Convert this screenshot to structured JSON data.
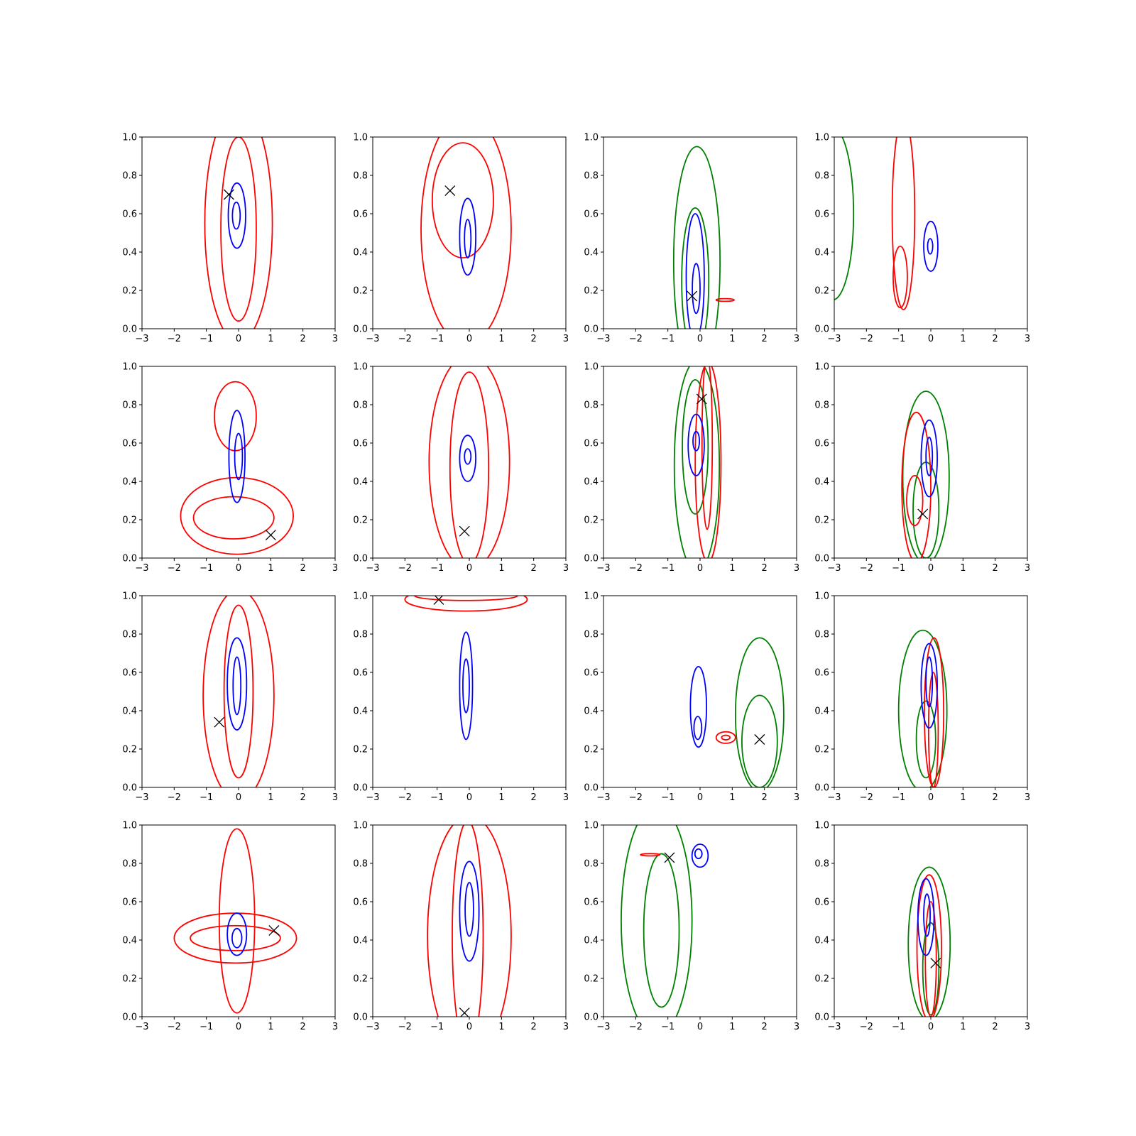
{
  "colors": {
    "blue": "#0000ff",
    "red": "#ff0000",
    "green": "#008000",
    "marker": "#000000"
  },
  "chart_data": [
    {
      "type": "contour",
      "row": 0,
      "col": 0,
      "xlim": [
        -3,
        3
      ],
      "ylim": [
        0,
        1
      ],
      "xticks": [
        "−3",
        "−2",
        "−1",
        "0",
        "1",
        "2",
        "3"
      ],
      "yticks": [
        "0.0",
        "0.2",
        "0.4",
        "0.6",
        "0.8",
        "1.0"
      ],
      "contours": [
        {
          "color": "red",
          "cx": 0,
          "cy": 0.55,
          "rx": 1.05,
          "ry": 0.62
        },
        {
          "color": "red",
          "cx": 0,
          "cy": 0.52,
          "rx": 0.55,
          "ry": 0.48
        },
        {
          "color": "blue",
          "cx": -0.05,
          "cy": 0.59,
          "rx": 0.27,
          "ry": 0.17
        },
        {
          "color": "blue",
          "cx": -0.07,
          "cy": 0.59,
          "rx": 0.12,
          "ry": 0.07
        }
      ],
      "marker": {
        "x": -0.3,
        "y": 0.7
      }
    },
    {
      "type": "contour",
      "row": 0,
      "col": 1,
      "xlim": [
        -3,
        3
      ],
      "ylim": [
        0,
        1
      ],
      "xticks": [
        "−3",
        "−2",
        "−1",
        "0",
        "1",
        "2",
        "3"
      ],
      "yticks": [
        "0.0",
        "0.2",
        "0.4",
        "0.6",
        "0.8",
        "1.0"
      ],
      "contours": [
        {
          "color": "red",
          "cx": -0.1,
          "cy": 0.52,
          "rx": 1.4,
          "ry": 0.6
        },
        {
          "color": "red",
          "cx": -0.2,
          "cy": 0.67,
          "rx": 0.95,
          "ry": 0.3
        },
        {
          "color": "blue",
          "cx": -0.05,
          "cy": 0.48,
          "rx": 0.25,
          "ry": 0.2
        },
        {
          "color": "blue",
          "cx": -0.05,
          "cy": 0.47,
          "rx": 0.1,
          "ry": 0.1
        }
      ],
      "marker": {
        "x": -0.6,
        "y": 0.72
      }
    },
    {
      "type": "contour",
      "row": 0,
      "col": 2,
      "xlim": [
        -3,
        3
      ],
      "ylim": [
        0,
        1
      ],
      "xticks": [
        "−3",
        "−2",
        "−1",
        "0",
        "1",
        "2",
        "3"
      ],
      "yticks": [
        "0.0",
        "0.2",
        "0.4",
        "0.6",
        "0.8",
        "1.0"
      ],
      "contours": [
        {
          "color": "green",
          "cx": -0.1,
          "cy": 0.35,
          "rx": 0.72,
          "ry": 0.6
        },
        {
          "color": "green",
          "cx": -0.15,
          "cy": 0.25,
          "rx": 0.42,
          "ry": 0.38
        },
        {
          "color": "blue",
          "cx": -0.15,
          "cy": 0.27,
          "rx": 0.28,
          "ry": 0.33
        },
        {
          "color": "blue",
          "cx": -0.12,
          "cy": 0.21,
          "rx": 0.12,
          "ry": 0.13
        },
        {
          "color": "red",
          "cx": 0.78,
          "cy": 0.15,
          "rx": 0.28,
          "ry": 0.007
        }
      ],
      "marker": {
        "x": -0.25,
        "y": 0.17
      }
    },
    {
      "type": "contour",
      "row": 0,
      "col": 3,
      "xlim": [
        -3,
        3
      ],
      "ylim": [
        0,
        1
      ],
      "xticks": [
        "−3",
        "−2",
        "−1",
        "0",
        "1",
        "2",
        "3"
      ],
      "yticks": [
        "0.0",
        "0.2",
        "0.4",
        "0.6",
        "0.8",
        "1.0"
      ],
      "contours": [
        {
          "color": "green",
          "cx": -3.05,
          "cy": 0.6,
          "rx": 0.65,
          "ry": 0.45
        },
        {
          "color": "red",
          "cx": -0.85,
          "cy": 0.6,
          "rx": 0.35,
          "ry": 0.5
        },
        {
          "color": "red",
          "cx": -0.95,
          "cy": 0.27,
          "rx": 0.22,
          "ry": 0.16
        },
        {
          "color": "blue",
          "cx": 0,
          "cy": 0.43,
          "rx": 0.22,
          "ry": 0.13
        },
        {
          "color": "blue",
          "cx": -0.02,
          "cy": 0.43,
          "rx": 0.08,
          "ry": 0.04
        }
      ],
      "marker": null
    },
    {
      "type": "contour",
      "row": 1,
      "col": 0,
      "xlim": [
        -3,
        3
      ],
      "ylim": [
        0,
        1
      ],
      "xticks": [
        "−3",
        "−2",
        "−1",
        "0",
        "1",
        "2",
        "3"
      ],
      "yticks": [
        "0.0",
        "0.2",
        "0.4",
        "0.6",
        "0.8",
        "1.0"
      ],
      "contours": [
        {
          "color": "red",
          "cx": -0.05,
          "cy": 0.22,
          "rx": 1.75,
          "ry": 0.2
        },
        {
          "color": "red",
          "cx": -0.15,
          "cy": 0.21,
          "rx": 1.25,
          "ry": 0.11
        },
        {
          "color": "red",
          "cx": -0.1,
          "cy": 0.74,
          "rx": 0.65,
          "ry": 0.18
        },
        {
          "color": "blue",
          "cx": -0.05,
          "cy": 0.53,
          "rx": 0.25,
          "ry": 0.24
        },
        {
          "color": "blue",
          "cx": 0,
          "cy": 0.53,
          "rx": 0.12,
          "ry": 0.12
        }
      ],
      "marker": {
        "x": 1.0,
        "y": 0.12
      }
    },
    {
      "type": "contour",
      "row": 1,
      "col": 1,
      "xlim": [
        -3,
        3
      ],
      "ylim": [
        0,
        1
      ],
      "xticks": [
        "−3",
        "−2",
        "−1",
        "0",
        "1",
        "2",
        "3"
      ],
      "yticks": [
        "0.0",
        "0.2",
        "0.4",
        "0.6",
        "0.8",
        "1.0"
      ],
      "contours": [
        {
          "color": "red",
          "cx": 0,
          "cy": 0.5,
          "rx": 1.25,
          "ry": 0.56
        },
        {
          "color": "red",
          "cx": 0,
          "cy": 0.47,
          "rx": 0.6,
          "ry": 0.5
        },
        {
          "color": "blue",
          "cx": -0.05,
          "cy": 0.52,
          "rx": 0.25,
          "ry": 0.12
        },
        {
          "color": "blue",
          "cx": -0.05,
          "cy": 0.53,
          "rx": 0.1,
          "ry": 0.04
        }
      ],
      "marker": {
        "x": -0.15,
        "y": 0.14
      }
    },
    {
      "type": "contour",
      "row": 1,
      "col": 2,
      "xlim": [
        -3,
        3
      ],
      "ylim": [
        0,
        1
      ],
      "xticks": [
        "−3",
        "−2",
        "−1",
        "0",
        "1",
        "2",
        "3"
      ],
      "yticks": [
        "0.0",
        "0.2",
        "0.4",
        "0.6",
        "0.8",
        "1.0"
      ],
      "contours": [
        {
          "color": "green",
          "cx": -0.1,
          "cy": 0.48,
          "rx": 0.7,
          "ry": 0.55
        },
        {
          "color": "green",
          "cx": -0.15,
          "cy": 0.58,
          "rx": 0.4,
          "ry": 0.35
        },
        {
          "color": "red",
          "cx": 0.25,
          "cy": 0.5,
          "rx": 0.4,
          "ry": 0.52
        },
        {
          "color": "red",
          "cx": 0.22,
          "cy": 0.6,
          "rx": 0.16,
          "ry": 0.45
        },
        {
          "color": "blue",
          "cx": -0.12,
          "cy": 0.59,
          "rx": 0.25,
          "ry": 0.16
        },
        {
          "color": "blue",
          "cx": -0.12,
          "cy": 0.61,
          "rx": 0.1,
          "ry": 0.05
        }
      ],
      "marker": {
        "x": 0.05,
        "y": 0.83
      }
    },
    {
      "type": "contour",
      "row": 1,
      "col": 3,
      "xlim": [
        -3,
        3
      ],
      "ylim": [
        0,
        1
      ],
      "xticks": [
        "−3",
        "−2",
        "−1",
        "0",
        "1",
        "2",
        "3"
      ],
      "yticks": [
        "0.0",
        "0.2",
        "0.4",
        "0.6",
        "0.8",
        "1.0"
      ],
      "contours": [
        {
          "color": "green",
          "cx": -0.15,
          "cy": 0.42,
          "rx": 0.72,
          "ry": 0.45
        },
        {
          "color": "green",
          "cx": -0.15,
          "cy": 0.25,
          "rx": 0.4,
          "ry": 0.25
        },
        {
          "color": "red",
          "cx": -0.45,
          "cy": 0.37,
          "rx": 0.45,
          "ry": 0.39
        },
        {
          "color": "red",
          "cx": -0.5,
          "cy": 0.3,
          "rx": 0.25,
          "ry": 0.13
        },
        {
          "color": "blue",
          "cx": -0.05,
          "cy": 0.52,
          "rx": 0.25,
          "ry": 0.2
        },
        {
          "color": "blue",
          "cx": -0.05,
          "cy": 0.53,
          "rx": 0.1,
          "ry": 0.1
        }
      ],
      "marker": {
        "x": -0.25,
        "y": 0.23
      }
    },
    {
      "type": "contour",
      "row": 2,
      "col": 0,
      "xlim": [
        -3,
        3
      ],
      "ylim": [
        0,
        1
      ],
      "xticks": [
        "−3",
        "−2",
        "−1",
        "0",
        "1",
        "2",
        "3"
      ],
      "yticks": [
        "0.0",
        "0.2",
        "0.4",
        "0.6",
        "0.8",
        "1.0"
      ],
      "contours": [
        {
          "color": "red",
          "cx": 0,
          "cy": 0.48,
          "rx": 1.1,
          "ry": 0.55
        },
        {
          "color": "red",
          "cx": 0,
          "cy": 0.5,
          "rx": 0.45,
          "ry": 0.45
        },
        {
          "color": "blue",
          "cx": -0.05,
          "cy": 0.54,
          "rx": 0.3,
          "ry": 0.24
        },
        {
          "color": "blue",
          "cx": -0.05,
          "cy": 0.53,
          "rx": 0.12,
          "ry": 0.15
        }
      ],
      "marker": {
        "x": -0.6,
        "y": 0.34
      }
    },
    {
      "type": "contour",
      "row": 2,
      "col": 1,
      "xlim": [
        -3,
        3
      ],
      "ylim": [
        0,
        1
      ],
      "xticks": [
        "−3",
        "−2",
        "−1",
        "0",
        "1",
        "2",
        "3"
      ],
      "yticks": [
        "0.0",
        "0.2",
        "0.4",
        "0.6",
        "0.8",
        "1.0"
      ],
      "contours": [
        {
          "color": "red",
          "cx": -0.1,
          "cy": 0.98,
          "rx": 1.9,
          "ry": 0.06
        },
        {
          "color": "red",
          "cx": -0.1,
          "cy": 1.0,
          "rx": 1.6,
          "ry": 0.025
        },
        {
          "color": "blue",
          "cx": -0.1,
          "cy": 0.53,
          "rx": 0.2,
          "ry": 0.28
        },
        {
          "color": "blue",
          "cx": -0.1,
          "cy": 0.53,
          "rx": 0.1,
          "ry": 0.14
        }
      ],
      "marker": {
        "x": -0.95,
        "y": 0.98
      }
    },
    {
      "type": "contour",
      "row": 2,
      "col": 2,
      "xlim": [
        -3,
        3
      ],
      "ylim": [
        0,
        1
      ],
      "xticks": [
        "−3",
        "−2",
        "−1",
        "0",
        "1",
        "2",
        "3"
      ],
      "yticks": [
        "0.0",
        "0.2",
        "0.4",
        "0.6",
        "0.8",
        "1.0"
      ],
      "contours": [
        {
          "color": "green",
          "cx": 1.85,
          "cy": 0.38,
          "rx": 0.75,
          "ry": 0.4
        },
        {
          "color": "green",
          "cx": 1.85,
          "cy": 0.24,
          "rx": 0.55,
          "ry": 0.24
        },
        {
          "color": "blue",
          "cx": -0.05,
          "cy": 0.42,
          "rx": 0.25,
          "ry": 0.21
        },
        {
          "color": "blue",
          "cx": -0.07,
          "cy": 0.31,
          "rx": 0.12,
          "ry": 0.06
        },
        {
          "color": "red",
          "cx": 0.8,
          "cy": 0.26,
          "rx": 0.3,
          "ry": 0.03
        },
        {
          "color": "red",
          "cx": 0.8,
          "cy": 0.26,
          "rx": 0.13,
          "ry": 0.012
        }
      ],
      "marker": {
        "x": 1.85,
        "y": 0.25
      }
    },
    {
      "type": "contour",
      "row": 2,
      "col": 3,
      "xlim": [
        -3,
        3
      ],
      "ylim": [
        0,
        1
      ],
      "xticks": [
        "−3",
        "−2",
        "−1",
        "0",
        "1",
        "2",
        "3"
      ],
      "yticks": [
        "0.0",
        "0.2",
        "0.4",
        "0.6",
        "0.8",
        "1.0"
      ],
      "contours": [
        {
          "color": "green",
          "cx": -0.25,
          "cy": 0.4,
          "rx": 0.75,
          "ry": 0.42
        },
        {
          "color": "green",
          "cx": -0.15,
          "cy": 0.25,
          "rx": 0.3,
          "ry": 0.2
        },
        {
          "color": "red",
          "cx": 0.1,
          "cy": 0.39,
          "rx": 0.3,
          "ry": 0.39
        },
        {
          "color": "red",
          "cx": 0.08,
          "cy": 0.3,
          "rx": 0.15,
          "ry": 0.3
        },
        {
          "color": "blue",
          "cx": -0.05,
          "cy": 0.53,
          "rx": 0.25,
          "ry": 0.22
        },
        {
          "color": "blue",
          "cx": -0.05,
          "cy": 0.55,
          "rx": 0.1,
          "ry": 0.13
        }
      ],
      "marker": null
    },
    {
      "type": "contour",
      "row": 3,
      "col": 0,
      "xlim": [
        -3,
        3
      ],
      "ylim": [
        0,
        1
      ],
      "xticks": [
        "−3",
        "−2",
        "−1",
        "0",
        "1",
        "2",
        "3"
      ],
      "yticks": [
        "0.0",
        "0.2",
        "0.4",
        "0.6",
        "0.8",
        "1.0"
      ],
      "contours": [
        {
          "color": "red",
          "cx": -0.1,
          "cy": 0.41,
          "rx": 1.9,
          "ry": 0.13
        },
        {
          "color": "red",
          "cx": -0.05,
          "cy": 0.5,
          "rx": 0.55,
          "ry": 0.48
        },
        {
          "color": "red",
          "cx": -0.1,
          "cy": 0.41,
          "rx": 1.4,
          "ry": 0.065
        },
        {
          "color": "blue",
          "cx": -0.05,
          "cy": 0.43,
          "rx": 0.3,
          "ry": 0.11
        },
        {
          "color": "blue",
          "cx": -0.05,
          "cy": 0.41,
          "rx": 0.15,
          "ry": 0.05
        }
      ],
      "marker": {
        "x": 1.1,
        "y": 0.45
      }
    },
    {
      "type": "contour",
      "row": 3,
      "col": 1,
      "xlim": [
        -3,
        3
      ],
      "ylim": [
        0,
        1
      ],
      "xticks": [
        "−3",
        "−2",
        "−1",
        "0",
        "1",
        "2",
        "3"
      ],
      "yticks": [
        "0.0",
        "0.2",
        "0.4",
        "0.6",
        "0.8",
        "1.0"
      ],
      "contours": [
        {
          "color": "red",
          "cx": 0,
          "cy": 0.42,
          "rx": 1.3,
          "ry": 0.63
        },
        {
          "color": "red",
          "cx": -0.05,
          "cy": 0.42,
          "rx": 0.48,
          "ry": 0.6
        },
        {
          "color": "blue",
          "cx": 0,
          "cy": 0.55,
          "rx": 0.3,
          "ry": 0.26
        },
        {
          "color": "blue",
          "cx": 0,
          "cy": 0.56,
          "rx": 0.13,
          "ry": 0.14
        }
      ],
      "marker": {
        "x": -0.15,
        "y": 0.02
      }
    },
    {
      "type": "contour",
      "row": 3,
      "col": 2,
      "xlim": [
        -3,
        3
      ],
      "ylim": [
        0,
        1
      ],
      "xticks": [
        "−3",
        "−2",
        "−1",
        "0",
        "1",
        "2",
        "3"
      ],
      "yticks": [
        "0.0",
        "0.2",
        "0.4",
        "0.6",
        "0.8",
        "1.0"
      ],
      "contours": [
        {
          "color": "green",
          "cx": -1.35,
          "cy": 0.5,
          "rx": 1.1,
          "ry": 0.6
        },
        {
          "color": "green",
          "cx": -1.2,
          "cy": 0.45,
          "rx": 0.55,
          "ry": 0.4
        },
        {
          "color": "red",
          "cx": -1.55,
          "cy": 0.845,
          "rx": 0.3,
          "ry": 0.006
        },
        {
          "color": "blue",
          "cx": 0,
          "cy": 0.84,
          "rx": 0.25,
          "ry": 0.06
        },
        {
          "color": "blue",
          "cx": -0.05,
          "cy": 0.85,
          "rx": 0.11,
          "ry": 0.025
        }
      ],
      "marker": {
        "x": -0.95,
        "y": 0.83
      }
    },
    {
      "type": "contour",
      "row": 3,
      "col": 3,
      "xlim": [
        -3,
        3
      ],
      "ylim": [
        0,
        1
      ],
      "xticks": [
        "−3",
        "−2",
        "−1",
        "0",
        "1",
        "2",
        "3"
      ],
      "yticks": [
        "0.0",
        "0.2",
        "0.4",
        "0.6",
        "0.8",
        "1.0"
      ],
      "contours": [
        {
          "color": "green",
          "cx": -0.05,
          "cy": 0.38,
          "rx": 0.65,
          "ry": 0.4
        },
        {
          "color": "green",
          "cx": 0,
          "cy": 0.25,
          "rx": 0.25,
          "ry": 0.24
        },
        {
          "color": "red",
          "cx": -0.05,
          "cy": 0.36,
          "rx": 0.38,
          "ry": 0.38
        },
        {
          "color": "red",
          "cx": 0,
          "cy": 0.3,
          "rx": 0.17,
          "ry": 0.3
        },
        {
          "color": "blue",
          "cx": -0.15,
          "cy": 0.52,
          "rx": 0.25,
          "ry": 0.2
        },
        {
          "color": "blue",
          "cx": -0.12,
          "cy": 0.53,
          "rx": 0.1,
          "ry": 0.11
        }
      ],
      "marker": {
        "x": 0.15,
        "y": 0.28
      }
    }
  ]
}
